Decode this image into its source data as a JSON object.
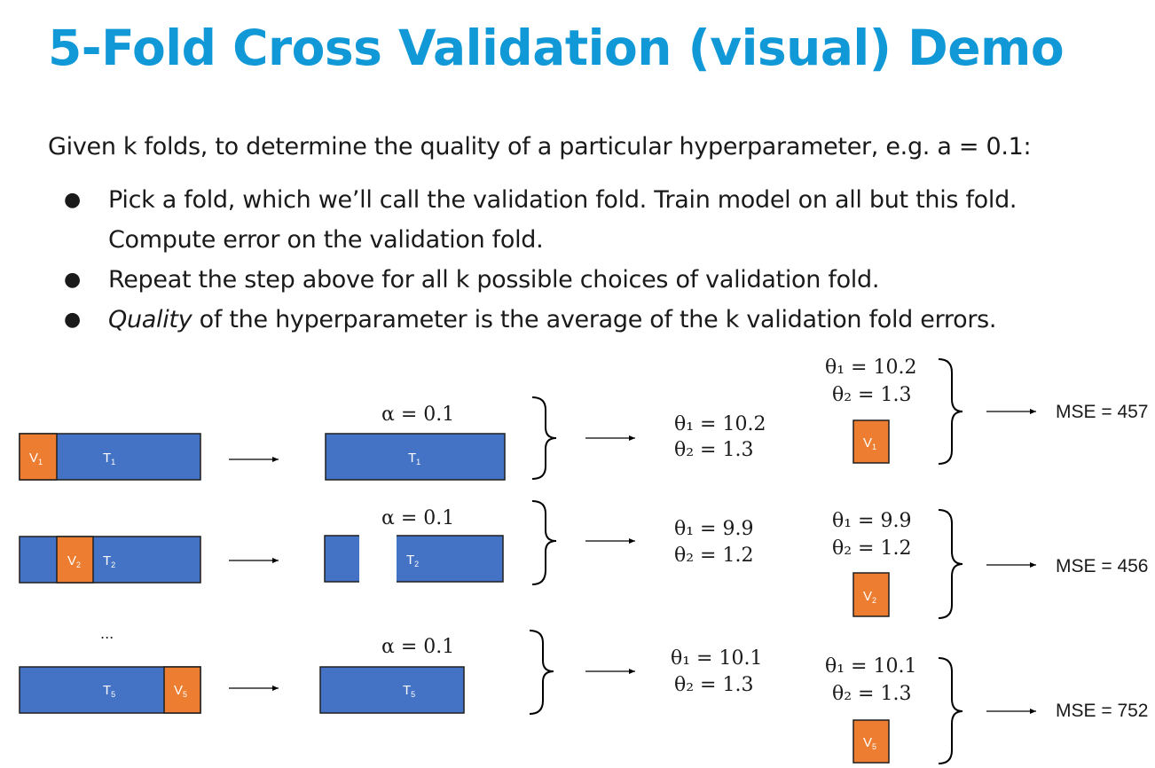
{
  "title": "5-Fold Cross Validation (visual) Demo",
  "intro": "Given k folds, to determine the quality of a particular hyperparameter, e.g. a = 0.1:",
  "bullets": {
    "b1_line1": "Pick a fold, which we’ll call the validation fold. Train model on all but this fold.",
    "b1_line2": "Compute error on the validation fold.",
    "b2": "Repeat the step above for all k possible choices of validation fold.",
    "b3_em": "Quality",
    "b3_rest": " of the hyperparameter is the average of the k validation fold errors."
  },
  "colors": {
    "train": "#4472c4",
    "validation": "#ed7d31",
    "title": "#1198d6"
  },
  "ellipsis": "...",
  "rows": [
    {
      "val_label": "V",
      "val_sub": "1",
      "train_label": "T",
      "train_sub": "1",
      "alpha": "α = 0.1",
      "fit_theta1": "θ₁ = 10.2",
      "fit_theta2": "θ₂ = 1.3",
      "eval_theta1": "θ₁ = 10.2",
      "eval_theta2": "θ₂ = 1.3",
      "mse": "MSE = 457"
    },
    {
      "val_label": "V",
      "val_sub": "2",
      "train_label": "T",
      "train_sub": "2",
      "alpha": "α = 0.1",
      "fit_theta1": "θ₁ = 9.9",
      "fit_theta2": "θ₂ = 1.2",
      "eval_theta1": "θ₁ = 9.9",
      "eval_theta2": "θ₂ = 1.2",
      "mse": "MSE = 456"
    },
    {
      "val_label": "V",
      "val_sub": "5",
      "train_label": "T",
      "train_sub": "5",
      "alpha": "α = 0.1",
      "fit_theta1": "θ₁ = 10.1",
      "fit_theta2": "θ₂ = 1.3",
      "eval_theta1": "θ₁ = 10.1",
      "eval_theta2": "θ₂ = 1.3",
      "mse": "MSE = 752"
    }
  ]
}
